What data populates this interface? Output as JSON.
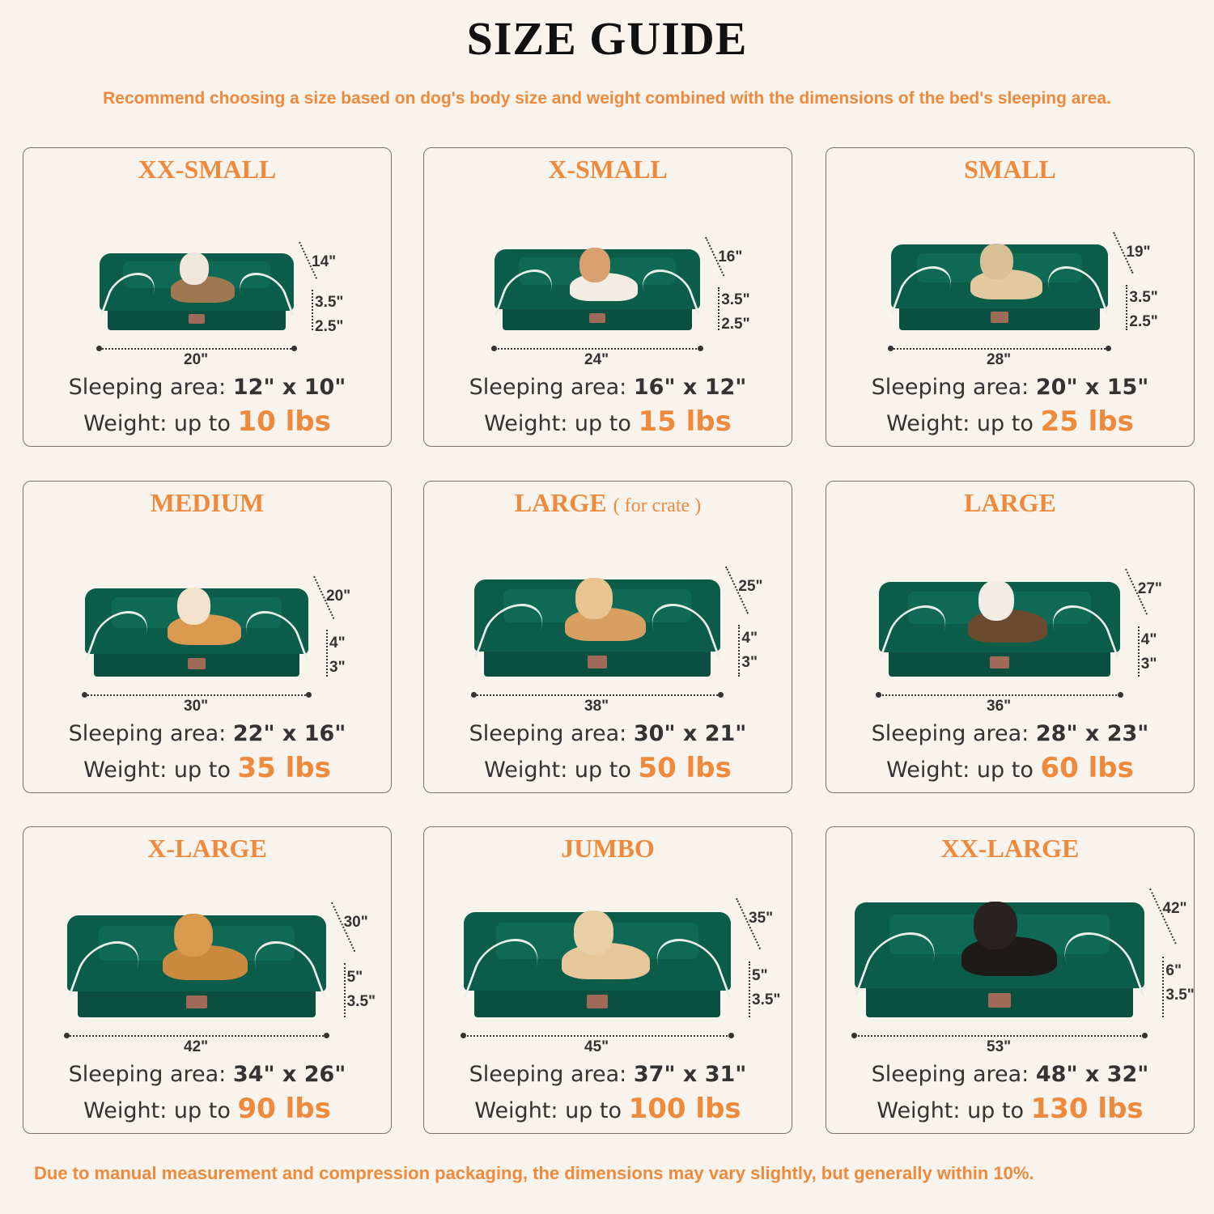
{
  "header": {
    "title": "SIZE GUIDE",
    "subtitle": "Recommend choosing a size based on dog's body size and weight combined with the dimensions of the bed's sleeping area."
  },
  "labels": {
    "sleeping_area": "Sleeping area:",
    "weight": "Weight: up to"
  },
  "colors": {
    "accent": "#ef8a3c",
    "bed": "#0c5c4a",
    "background": "#f9f3ee"
  },
  "sizes": [
    {
      "name": "XX-SMALL",
      "note": "",
      "pet": "cat",
      "width": "20\"",
      "depth": "14\"",
      "top_height": "3.5\"",
      "base_height": "2.5\"",
      "sleeping_area": "12\" x 10\"",
      "weight": "10 lbs"
    },
    {
      "name": "X-SMALL",
      "note": "",
      "pet": "dog",
      "width": "24\"",
      "depth": "16\"",
      "top_height": "3.5\"",
      "base_height": "2.5\"",
      "sleeping_area": "16\" x 12\"",
      "weight": "15 lbs"
    },
    {
      "name": "SMALL",
      "note": "",
      "pet": "dog",
      "width": "28\"",
      "depth": "19\"",
      "top_height": "3.5\"",
      "base_height": "2.5\"",
      "sleeping_area": "20\" x 15\"",
      "weight": "25 lbs"
    },
    {
      "name": "MEDIUM",
      "note": "",
      "pet": "dog",
      "width": "30\"",
      "depth": "20\"",
      "top_height": "4\"",
      "base_height": "3\"",
      "sleeping_area": "22\" x 16\"",
      "weight": "35 lbs"
    },
    {
      "name": "LARGE",
      "note": "( for crate )",
      "pet": "dog",
      "width": "38\"",
      "depth": "25\"",
      "top_height": "4\"",
      "base_height": "3\"",
      "sleeping_area": "30\" x 21\"",
      "weight": "50 lbs"
    },
    {
      "name": "LARGE",
      "note": "",
      "pet": "dog",
      "width": "36\"",
      "depth": "27\"",
      "top_height": "4\"",
      "base_height": "3\"",
      "sleeping_area": "28\" x 23\"",
      "weight": "60 lbs"
    },
    {
      "name": "X-LARGE",
      "note": "",
      "pet": "dog",
      "width": "42\"",
      "depth": "30\"",
      "top_height": "5\"",
      "base_height": "3.5\"",
      "sleeping_area": "34\" x 26\"",
      "weight": "90 lbs"
    },
    {
      "name": "JUMBO",
      "note": "",
      "pet": "dog",
      "width": "45\"",
      "depth": "35\"",
      "top_height": "5\"",
      "base_height": "3.5\"",
      "sleeping_area": "37\" x 31\"",
      "weight": "100 lbs"
    },
    {
      "name": "XX-LARGE",
      "note": "",
      "pet": "dog",
      "width": "53\"",
      "depth": "42\"",
      "top_height": "6\"",
      "base_height": "3.5\"",
      "sleeping_area": "48\" x 32\"",
      "weight": "130 lbs"
    }
  ],
  "footer": "Due to manual measurement and compression packaging, the dimensions may vary slightly, but generally within 10%."
}
